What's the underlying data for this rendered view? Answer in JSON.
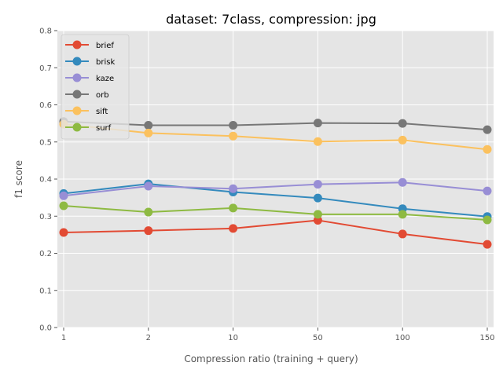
{
  "chart_data": {
    "type": "line",
    "title": "dataset: 7class, compression: jpg",
    "xlabel": "Compression ratio (training + query)",
    "ylabel": "f1 score",
    "categories": [
      "1",
      "2",
      "10",
      "50",
      "100",
      "150"
    ],
    "ylim": [
      0,
      0.8
    ],
    "yticks": [
      "0.0",
      "0.1",
      "0.2",
      "0.3",
      "0.4",
      "0.5",
      "0.6",
      "0.7",
      "0.8"
    ],
    "grid": true,
    "legend_position": "top-left",
    "series": [
      {
        "name": "brief",
        "color": "#E24A33",
        "values": [
          0.256,
          0.261,
          0.267,
          0.289,
          0.252,
          0.224
        ]
      },
      {
        "name": "brisk",
        "color": "#348ABD",
        "values": [
          0.361,
          0.387,
          0.365,
          0.349,
          0.32,
          0.299
        ]
      },
      {
        "name": "kaze",
        "color": "#988ED5",
        "values": [
          0.355,
          0.381,
          0.374,
          0.386,
          0.391,
          0.368
        ]
      },
      {
        "name": "orb",
        "color": "#777777",
        "values": [
          0.555,
          0.545,
          0.545,
          0.551,
          0.55,
          0.533
        ]
      },
      {
        "name": "sift",
        "color": "#FBC15E",
        "values": [
          0.548,
          0.524,
          0.516,
          0.501,
          0.505,
          0.48
        ]
      },
      {
        "name": "surf",
        "color": "#8EBA42",
        "values": [
          0.328,
          0.311,
          0.322,
          0.305,
          0.305,
          0.29
        ]
      }
    ]
  },
  "colors": {
    "plot_background": "#E5E5E5",
    "grid": "#FFFFFF"
  }
}
